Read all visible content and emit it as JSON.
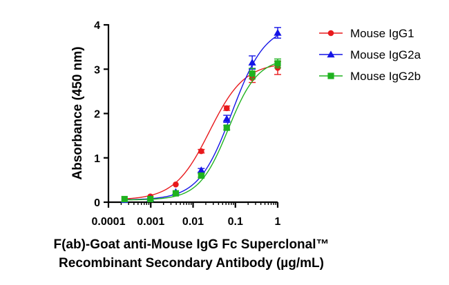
{
  "chart_data": {
    "type": "line",
    "title": "",
    "xlabel_line1": "F(ab)-Goat anti-Mouse IgG Fc Superclonal™",
    "xlabel_line2": "Recombinant Secondary Antibody (µg/mL)",
    "ylabel": "Absorbance (450 nm)",
    "xscale": "log",
    "xlim": [
      0.0001,
      1
    ],
    "ylim": [
      0,
      4
    ],
    "x_ticks": [
      0.0001,
      0.001,
      0.01,
      0.1,
      1
    ],
    "x_tick_labels": [
      "0.0001",
      "0.001",
      "0.01",
      "0.1",
      "1"
    ],
    "y_ticks": [
      0,
      1,
      2,
      3,
      4
    ],
    "y_tick_labels": [
      "0",
      "1",
      "2",
      "3",
      "4"
    ],
    "legend_position": "top-right",
    "grid": false,
    "x": [
      0.00024,
      0.00098,
      0.0039,
      0.0156,
      0.0625,
      0.25,
      1
    ],
    "series": [
      {
        "name": "Mouse IgG1",
        "color": "#e8191c",
        "marker": "circle",
        "values": [
          0.07,
          0.13,
          0.4,
          1.15,
          2.12,
          2.8,
          3.03
        ],
        "errors": [
          0.02,
          0.02,
          0.03,
          0.04,
          0.05,
          0.1,
          0.15
        ],
        "fit": {
          "bottom": 0.05,
          "top": 3.15,
          "ec50": 0.0245,
          "hill": 1.05
        }
      },
      {
        "name": "Mouse IgG2a",
        "color": "#1414e6",
        "marker": "triangle",
        "values": [
          0.05,
          0.08,
          0.23,
          0.72,
          1.88,
          3.15,
          3.82
        ],
        "errors": [
          0.02,
          0.02,
          0.03,
          0.04,
          0.08,
          0.15,
          0.12
        ],
        "fit": {
          "bottom": 0.05,
          "top": 4.0,
          "ec50": 0.083,
          "hill": 1.1
        }
      },
      {
        "name": "Mouse IgG2b",
        "color": "#1fb21f",
        "marker": "square",
        "values": [
          0.07,
          0.07,
          0.2,
          0.6,
          1.68,
          2.9,
          3.13
        ],
        "errors": [
          0.02,
          0.02,
          0.03,
          0.04,
          0.05,
          0.12,
          0.1
        ],
        "fit": {
          "bottom": 0.05,
          "top": 3.25,
          "ec50": 0.068,
          "hill": 1.25
        }
      }
    ]
  }
}
